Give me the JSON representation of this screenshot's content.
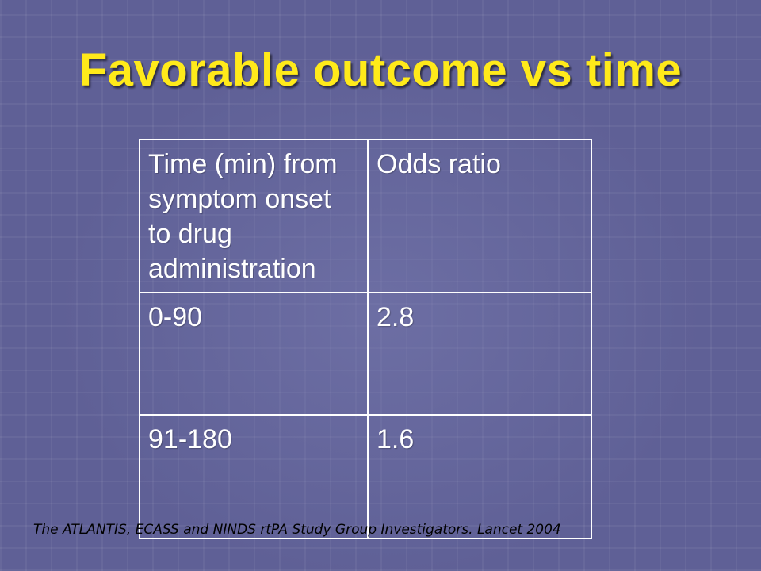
{
  "slide": {
    "title": "Favorable outcome vs time",
    "table": {
      "headers": [
        "Time (min) from symptom onset to drug administration",
        "Odds ratio"
      ],
      "rows": [
        [
          "0-90",
          "2.8"
        ],
        [
          "91-180",
          "1.6"
        ]
      ]
    },
    "citation": "The ATLANTIS, ECASS and NINDS rtPA Study Group Investigators. Lancet 2004"
  },
  "colors": {
    "background": "#5f6096",
    "title": "#ffea1a",
    "table_text": "#ffffff",
    "citation": "#000000"
  }
}
